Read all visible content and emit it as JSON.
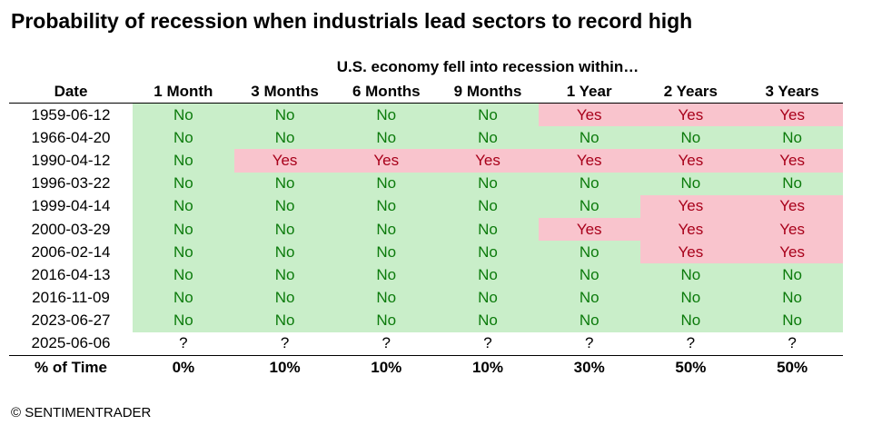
{
  "chart_data": {
    "type": "table",
    "title": "Probability of recession when industrials lead sectors to record high",
    "subtitle": "U.S. economy fell into recession within…",
    "date_header": "Date",
    "columns": [
      "1 Month",
      "3 Months",
      "6 Months",
      "9 Months",
      "1 Year",
      "2 Years",
      "3 Years"
    ],
    "rows": [
      {
        "date": "1959-06-12",
        "values": [
          "No",
          "No",
          "No",
          "No",
          "Yes",
          "Yes",
          "Yes"
        ]
      },
      {
        "date": "1966-04-20",
        "values": [
          "No",
          "No",
          "No",
          "No",
          "No",
          "No",
          "No"
        ]
      },
      {
        "date": "1990-04-12",
        "values": [
          "No",
          "Yes",
          "Yes",
          "Yes",
          "Yes",
          "Yes",
          "Yes"
        ]
      },
      {
        "date": "1996-03-22",
        "values": [
          "No",
          "No",
          "No",
          "No",
          "No",
          "No",
          "No"
        ]
      },
      {
        "date": "1999-04-14",
        "values": [
          "No",
          "No",
          "No",
          "No",
          "No",
          "Yes",
          "Yes"
        ]
      },
      {
        "date": "2000-03-29",
        "values": [
          "No",
          "No",
          "No",
          "No",
          "Yes",
          "Yes",
          "Yes"
        ]
      },
      {
        "date": "2006-02-14",
        "values": [
          "No",
          "No",
          "No",
          "No",
          "No",
          "Yes",
          "Yes"
        ]
      },
      {
        "date": "2016-04-13",
        "values": [
          "No",
          "No",
          "No",
          "No",
          "No",
          "No",
          "No"
        ]
      },
      {
        "date": "2016-11-09",
        "values": [
          "No",
          "No",
          "No",
          "No",
          "No",
          "No",
          "No"
        ]
      },
      {
        "date": "2023-06-27",
        "values": [
          "No",
          "No",
          "No",
          "No",
          "No",
          "No",
          "No"
        ]
      },
      {
        "date": "2025-06-06",
        "values": [
          "?",
          "?",
          "?",
          "?",
          "?",
          "?",
          "?"
        ]
      }
    ],
    "summary": {
      "label": "% of Time",
      "values": [
        "0%",
        "10%",
        "10%",
        "10%",
        "30%",
        "50%",
        "50%"
      ]
    }
  },
  "footer": "© SENTIMENTRADER",
  "colors": {
    "no_bg": "#c9eec9",
    "no_text": "#0b7a0b",
    "yes_bg": "#f9c4cd",
    "yes_text": "#a8001a"
  }
}
